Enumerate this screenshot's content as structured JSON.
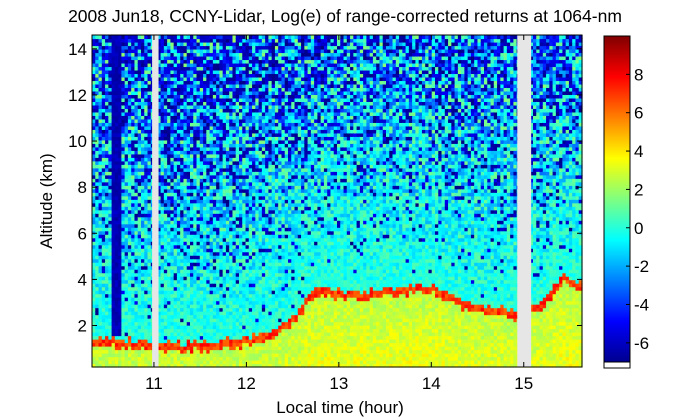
{
  "chart_data": {
    "type": "heatmap",
    "title": "2008 Jun18, CCNY-Lidar, Log(e) of range-corrected returns at 1064-nm",
    "xlabel": "Local time (hour)",
    "ylabel": "Altitude (km)",
    "x_ticks": [
      "11",
      "12",
      "13",
      "14",
      "15"
    ],
    "x_tick_values": [
      11,
      12,
      13,
      14,
      15
    ],
    "y_ticks": [
      "2",
      "4",
      "6",
      "8",
      "10",
      "12",
      "14"
    ],
    "y_tick_values": [
      2,
      4,
      6,
      8,
      10,
      12,
      14
    ],
    "xlim": [
      10.33,
      15.63
    ],
    "ylim": [
      0.2,
      14.6
    ],
    "grid": false,
    "colorbar": {
      "colormap": "jet",
      "range": [
        -7,
        10
      ],
      "ticks": [
        "-6",
        "-4",
        "-2",
        "0",
        "2",
        "4",
        "6",
        "8"
      ],
      "tick_values": [
        -6,
        -4,
        -2,
        0,
        2,
        4,
        6,
        8
      ]
    },
    "data_gaps_hours": [
      [
        10.98,
        11.05
      ],
      [
        14.93,
        15.08
      ]
    ],
    "features": {
      "background_value_above_boundary_layer": 0,
      "surface_layer_value": 2.5,
      "boundary_layer_top_km": [
        {
          "t": 10.4,
          "h": 1.3
        },
        {
          "t": 11.3,
          "h": 1.1
        },
        {
          "t": 11.8,
          "h": 1.2
        },
        {
          "t": 12.2,
          "h": 1.5
        },
        {
          "t": 12.5,
          "h": 2.2
        },
        {
          "t": 12.75,
          "h": 3.5
        },
        {
          "t": 13.2,
          "h": 3.3
        },
        {
          "t": 13.5,
          "h": 3.5
        },
        {
          "t": 14.0,
          "h": 3.6
        },
        {
          "t": 14.3,
          "h": 3.0
        },
        {
          "t": 14.6,
          "h": 2.7
        },
        {
          "t": 14.9,
          "h": 2.5
        },
        {
          "t": 15.2,
          "h": 2.9
        },
        {
          "t": 15.45,
          "h": 4.1
        },
        {
          "t": 15.63,
          "h": 3.6
        }
      ],
      "boundary_layer_top_value": 8,
      "low_signal_column_hours": [
        10.55,
        10.65
      ],
      "low_signal_value": -6.5
    }
  }
}
